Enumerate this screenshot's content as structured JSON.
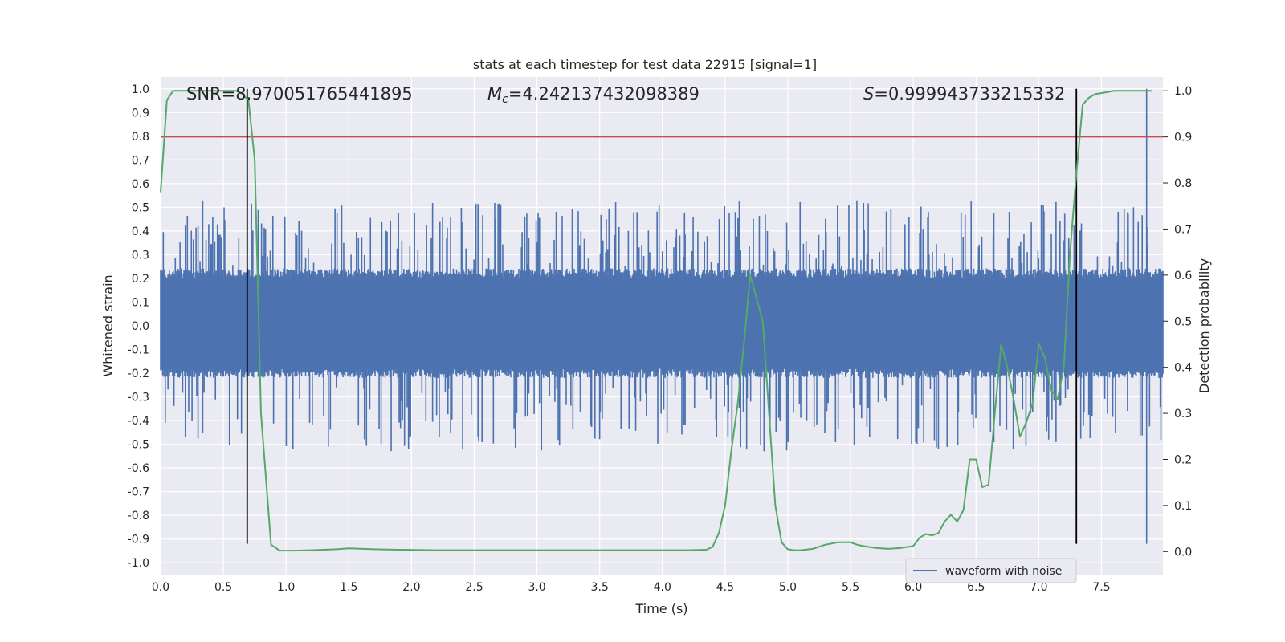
{
  "chart_data": {
    "type": "line",
    "title": "stats at each timestep for test data 22915 [signal=1]",
    "xlabel": "Time (s)",
    "ylabel_left": "Whitened strain",
    "ylabel_right": "Detection probability",
    "xlim": [
      0.0,
      7.99
    ],
    "ylim_left": [
      -1.05,
      1.05
    ],
    "ylim_right": [
      -0.05,
      1.03
    ],
    "x_ticks": [
      "0.0",
      "0.5",
      "1.0",
      "1.5",
      "2.0",
      "2.5",
      "3.0",
      "3.5",
      "4.0",
      "4.5",
      "5.0",
      "5.5",
      "6.0",
      "6.5",
      "7.0",
      "7.5"
    ],
    "y_left_ticks": [
      "-1.0",
      "-0.9",
      "-0.8",
      "-0.7",
      "-0.6",
      "-0.5",
      "-0.4",
      "-0.3",
      "-0.2",
      "-0.1",
      "0.0",
      "0.1",
      "0.2",
      "0.3",
      "0.4",
      "0.5",
      "0.6",
      "0.7",
      "0.8",
      "0.9",
      "1.0"
    ],
    "y_right_ticks": [
      "0.0",
      "0.1",
      "0.2",
      "0.3",
      "0.4",
      "0.5",
      "0.6",
      "0.7",
      "0.8",
      "0.9",
      "1.0"
    ],
    "grid": true,
    "legend_position": "lower-right",
    "annotations": {
      "snr": "SNR=8.970051765441895",
      "mc_prefix": "M",
      "mc_sub": "c",
      "mc_value": "=4.242137432098389",
      "s_prefix": "S",
      "s_value": "=0.999943733215332"
    },
    "colors": {
      "background": "#eaeaf2",
      "grid": "#ffffff",
      "waveform": "#4c72b0",
      "probability": "#55a868",
      "threshold": "#c44e52",
      "markers": "#000000"
    },
    "waveform": {
      "name": "waveform with noise",
      "envelope_y_range": [
        -0.2,
        0.22
      ],
      "peak_y_range": [
        -0.92,
        1.0
      ]
    },
    "threshold_probability": 0.9,
    "vertical_markers_x": [
      0.69,
      7.3
    ],
    "probability_series": {
      "x": [
        0.0,
        0.05,
        0.1,
        0.2,
        0.3,
        0.4,
        0.5,
        0.6,
        0.64,
        0.7,
        0.75,
        0.8,
        0.88,
        0.95,
        1.05,
        1.2,
        1.4,
        1.5,
        1.7,
        1.9,
        2.2,
        2.5,
        2.8,
        3.0,
        3.3,
        3.6,
        3.9,
        4.2,
        4.35,
        4.4,
        4.45,
        4.5,
        4.55,
        4.6,
        4.65,
        4.7,
        4.75,
        4.8,
        4.85,
        4.9,
        4.95,
        5.0,
        5.05,
        5.1,
        5.2,
        5.3,
        5.4,
        5.5,
        5.55,
        5.6,
        5.7,
        5.8,
        5.9,
        6.0,
        6.05,
        6.1,
        6.15,
        6.2,
        6.25,
        6.3,
        6.35,
        6.4,
        6.45,
        6.5,
        6.55,
        6.6,
        6.65,
        6.7,
        6.75,
        6.8,
        6.85,
        6.9,
        6.95,
        7.0,
        7.05,
        7.1,
        7.15,
        7.2,
        7.25,
        7.3,
        7.35,
        7.4,
        7.45,
        7.5,
        7.6,
        7.7,
        7.8,
        7.9
      ],
      "y": [
        0.78,
        0.98,
        1.0,
        1.0,
        1.0,
        1.0,
        1.0,
        1.0,
        0.995,
        0.98,
        0.85,
        0.3,
        0.015,
        0.002,
        0.002,
        0.003,
        0.005,
        0.007,
        0.005,
        0.004,
        0.003,
        0.003,
        0.003,
        0.003,
        0.003,
        0.003,
        0.003,
        0.003,
        0.004,
        0.01,
        0.04,
        0.1,
        0.22,
        0.32,
        0.45,
        0.6,
        0.55,
        0.5,
        0.3,
        0.1,
        0.02,
        0.005,
        0.003,
        0.003,
        0.006,
        0.015,
        0.02,
        0.02,
        0.015,
        0.012,
        0.008,
        0.006,
        0.008,
        0.012,
        0.03,
        0.038,
        0.035,
        0.04,
        0.065,
        0.08,
        0.065,
        0.09,
        0.2,
        0.2,
        0.14,
        0.145,
        0.3,
        0.45,
        0.4,
        0.33,
        0.25,
        0.28,
        0.32,
        0.45,
        0.42,
        0.35,
        0.33,
        0.4,
        0.65,
        0.82,
        0.97,
        0.985,
        0.993,
        0.995,
        1.0,
        1.0,
        1.0,
        1.0
      ]
    }
  }
}
